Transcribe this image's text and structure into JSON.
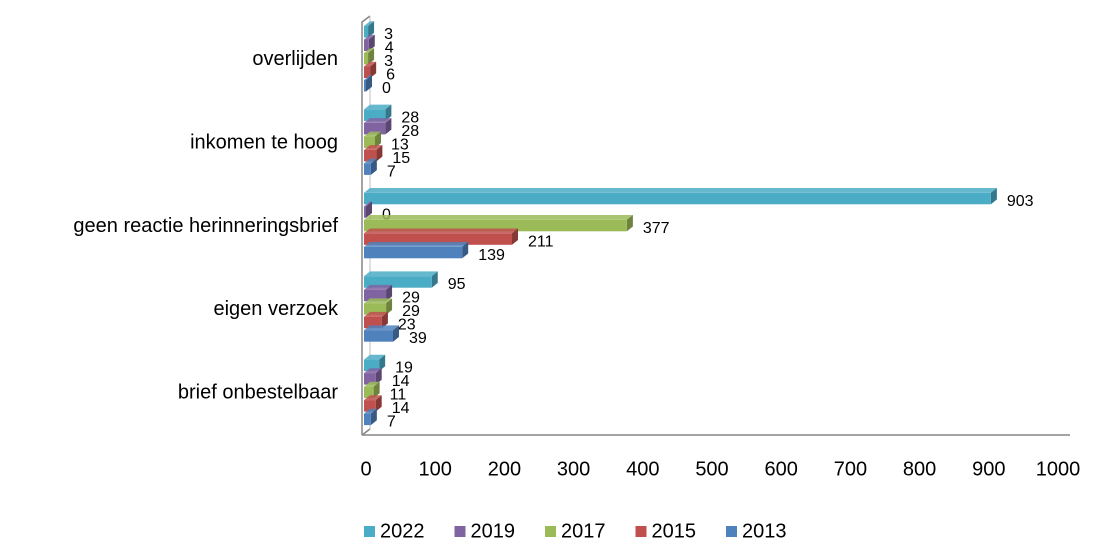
{
  "chart_data": {
    "type": "bar",
    "orientation": "horizontal",
    "categories": [
      "overlijden",
      "inkomen te hoog",
      "geen reactie herinneringsbrief",
      "eigen verzoek",
      "brief onbestelbaar"
    ],
    "series": [
      {
        "name": "2022",
        "color": "#4bacc6",
        "values": [
          3,
          28,
          903,
          95,
          19
        ]
      },
      {
        "name": "2019",
        "color": "#8064a2",
        "values": [
          4,
          28,
          0,
          29,
          14
        ]
      },
      {
        "name": "2017",
        "color": "#9bbb59",
        "values": [
          3,
          13,
          377,
          29,
          11
        ]
      },
      {
        "name": "2015",
        "color": "#c0504d",
        "values": [
          6,
          15,
          211,
          23,
          14
        ]
      },
      {
        "name": "2013",
        "color": "#4f81bd",
        "values": [
          0,
          7,
          139,
          39,
          7
        ]
      }
    ],
    "xlim": [
      0,
      1000
    ],
    "xticks": [
      0,
      100,
      200,
      300,
      400,
      500,
      600,
      700,
      800,
      900,
      1000
    ],
    "legend": "bottom"
  }
}
